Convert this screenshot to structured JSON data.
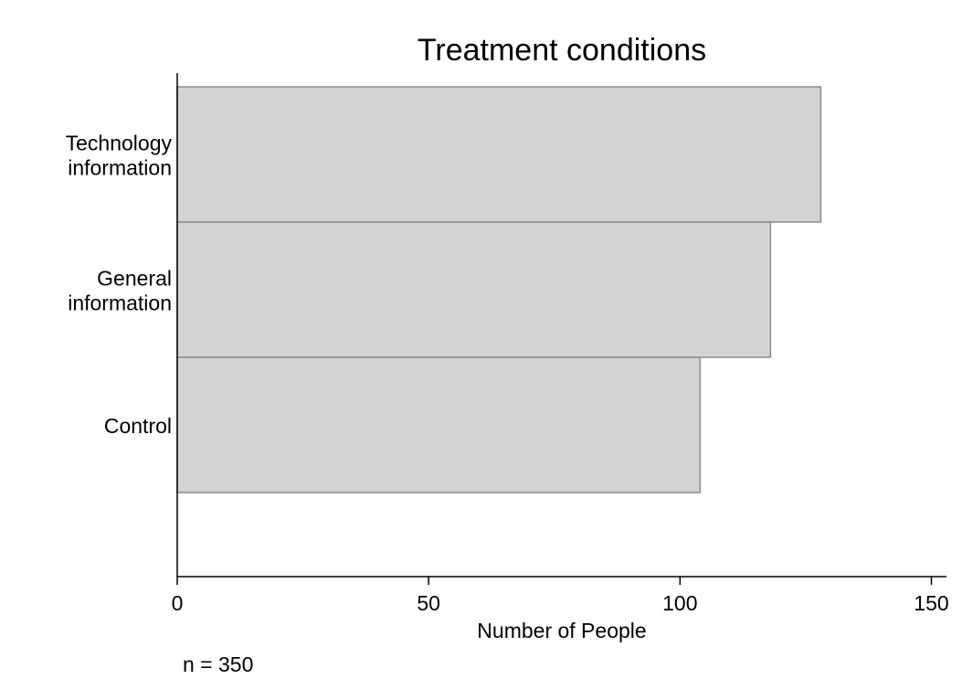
{
  "chart_data": {
    "type": "bar",
    "orientation": "horizontal",
    "title": "Treatment conditions",
    "categories": [
      [
        "Technology",
        "information"
      ],
      [
        "General",
        "information"
      ],
      [
        "Control"
      ]
    ],
    "values": [
      128,
      118,
      104
    ],
    "xlabel": "Number of People",
    "ylabel": "",
    "xlim": [
      0,
      153
    ],
    "xticks": [
      0,
      50,
      100,
      150
    ],
    "grid": false,
    "bar_color": "#d3d3d3",
    "bar_edge_color": "#8c8c8c",
    "note": "n = 350"
  }
}
